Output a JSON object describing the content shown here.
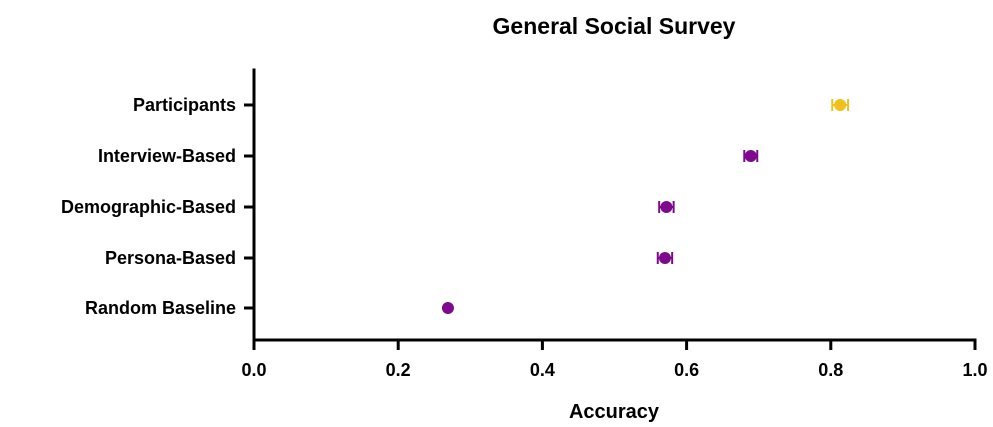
{
  "chart_data": {
    "type": "scatter",
    "title": "General Social Survey",
    "xlabel": "Accuracy",
    "ylabel": "",
    "xlim": [
      0.0,
      1.0
    ],
    "xticks": [
      "0.0",
      "0.2",
      "0.4",
      "0.6",
      "0.8",
      "1.0"
    ],
    "grid": false,
    "legend": "none",
    "categories": [
      "Participants",
      "Interview-Based",
      "Demographic-Based",
      "Persona-Based",
      "Random Baseline"
    ],
    "points": [
      {
        "label": "Participants",
        "value": 0.813,
        "error": 0.011,
        "color": "#f0c020"
      },
      {
        "label": "Interview-Based",
        "value": 0.689,
        "error": 0.009,
        "color": "#7d0a8a"
      },
      {
        "label": "Demographic-Based",
        "value": 0.572,
        "error": 0.01,
        "color": "#7d0a8a"
      },
      {
        "label": "Persona-Based",
        "value": 0.57,
        "error": 0.01,
        "color": "#7d0a8a"
      },
      {
        "label": "Random Baseline",
        "value": 0.269,
        "error": 0.0,
        "color": "#7d0a8a"
      }
    ]
  }
}
